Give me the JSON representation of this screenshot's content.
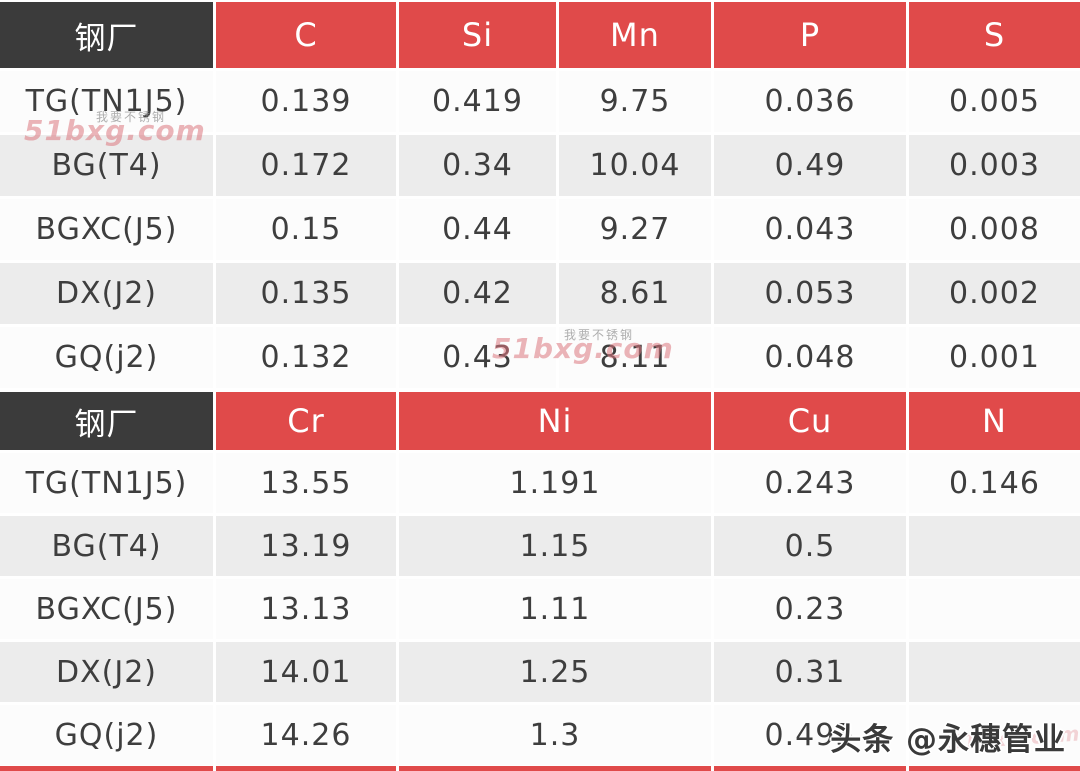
{
  "table1": {
    "headers": [
      "钢厂",
      "C",
      "Si",
      "Mn",
      "P",
      "S"
    ],
    "rows": [
      [
        "TG(TN1J5)",
        "0.139",
        "0.419",
        "9.75",
        "0.036",
        "0.005"
      ],
      [
        "BG(T4)",
        "0.172",
        "0.34",
        "10.04",
        "0.49",
        "0.003"
      ],
      [
        "BGXC(J5)",
        "0.15",
        "0.44",
        "9.27",
        "0.043",
        "0.008"
      ],
      [
        "DX(J2)",
        "0.135",
        "0.42",
        "8.61",
        "0.053",
        "0.002"
      ],
      [
        "GQ(j2)",
        "0.132",
        "0.43",
        "8.11",
        "0.048",
        "0.001"
      ]
    ]
  },
  "table2": {
    "headers": [
      "钢厂",
      "Cr",
      "Ni",
      "Cu",
      "N"
    ],
    "rows": [
      [
        "TG(TN1J5)",
        "13.55",
        "1.191",
        "0.243",
        "0.146"
      ],
      [
        "BG(T4)",
        "13.19",
        "1.15",
        "0.5",
        ""
      ],
      [
        "BGXC(J5)",
        "13.13",
        "1.11",
        "0.23",
        ""
      ],
      [
        "DX(J2)",
        "14.01",
        "1.25",
        "0.31",
        ""
      ],
      [
        "GQ(j2)",
        "14.26",
        "1.3",
        "0.495",
        ""
      ]
    ]
  },
  "watermark": {
    "site": "51bxg.com",
    "tagline": "我要不锈钢"
  },
  "byline": "头条 @永穗管业",
  "colors": {
    "header_red": "#e04a4a",
    "header_dark": "#3b3b3b",
    "row_alt": "#ececec"
  }
}
